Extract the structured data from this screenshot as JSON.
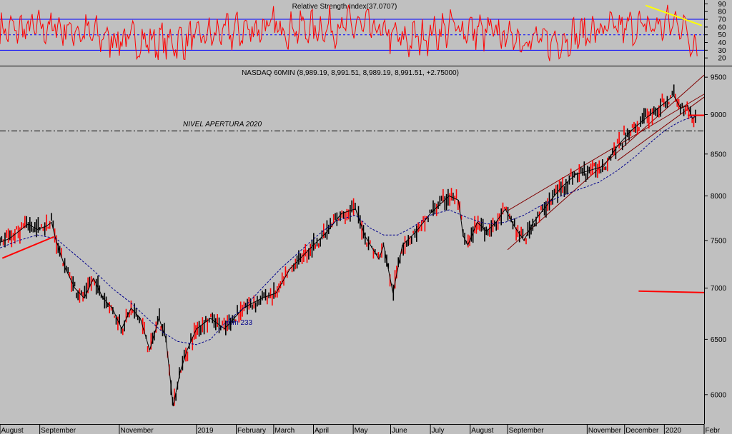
{
  "chart_data": [
    {
      "type": "line",
      "title": "Relative Strength Index(37.0707)",
      "ylim": [
        10,
        95
      ],
      "y_ticks": [
        90,
        80,
        70,
        60,
        50,
        40,
        30,
        20
      ],
      "levels": {
        "upper": 70,
        "mid": 50,
        "lower": 30
      },
      "series": [
        {
          "color": "#ff0000",
          "anchors": [
            [
              2018.58,
              55
            ],
            [
              2018.7,
              60
            ],
            [
              2018.82,
              45
            ],
            [
              2018.95,
              40
            ],
            [
              2019.05,
              52
            ],
            [
              2019.15,
              60
            ],
            [
              2019.25,
              58
            ],
            [
              2019.35,
              62
            ],
            [
              2019.45,
              42
            ],
            [
              2019.55,
              60
            ],
            [
              2019.65,
              50
            ],
            [
              2019.75,
              40
            ],
            [
              2019.85,
              55
            ],
            [
              2019.95,
              60
            ],
            [
              2020.0,
              62
            ],
            [
              2020.03,
              68
            ],
            [
              2020.07,
              35
            ]
          ]
        }
      ],
      "annotations": [
        {
          "type": "trendline",
          "color": "#ffff00",
          "points": [
            [
              2019.96,
              88
            ],
            [
              2020.08,
              62
            ]
          ]
        }
      ]
    },
    {
      "type": "line",
      "title": "NASDAQ 60MIN (8,989.19, 8,991.51, 8,989.19, 8,991.51, +2.75000)",
      "ylim": [
        5750,
        9650
      ],
      "y_ticks": [
        9500,
        9000,
        8500,
        8000,
        7500,
        7000,
        6500,
        6000
      ],
      "x_ticks": [
        {
          "label": "August",
          "x": 2018.58
        },
        {
          "label": "September",
          "x": 2018.665
        },
        {
          "label": "November",
          "x": 2018.835
        },
        {
          "label": "2019",
          "x": 2019.0
        },
        {
          "label": "February",
          "x": 2019.085
        },
        {
          "label": "March",
          "x": 2019.165
        },
        {
          "label": "April",
          "x": 2019.25
        },
        {
          "label": "May",
          "x": 2019.335
        },
        {
          "label": "June",
          "x": 2019.415
        },
        {
          "label": "July",
          "x": 2019.5
        },
        {
          "label": "August",
          "x": 2019.585
        },
        {
          "label": "September",
          "x": 2019.665
        },
        {
          "label": "November",
          "x": 2019.835
        },
        {
          "label": "December",
          "x": 2019.915
        },
        {
          "label": "2020",
          "x": 2020.0
        },
        {
          "label": "Febr",
          "x": 2020.085
        }
      ],
      "series": [
        {
          "kind": "price",
          "color": "#000000",
          "x": [
            2018.58,
            2018.6,
            2018.62,
            2018.64,
            2018.66,
            2018.68,
            2018.69,
            2018.7,
            2018.72,
            2018.74,
            2018.76,
            2018.78,
            2018.8,
            2018.82,
            2018.84,
            2018.86,
            2018.88,
            2018.9,
            2018.92,
            2018.935,
            2018.95,
            2018.965,
            2018.98,
            2019.0,
            2019.03,
            2019.06,
            2019.1,
            2019.14,
            2019.17,
            2019.2,
            2019.24,
            2019.28,
            2019.31,
            2019.34,
            2019.36,
            2019.39,
            2019.4,
            2019.42,
            2019.44,
            2019.47,
            2019.5,
            2019.54,
            2019.56,
            2019.57,
            2019.58,
            2019.6,
            2019.62,
            2019.64,
            2019.66,
            2019.68,
            2019.7,
            2019.72,
            2019.75,
            2019.78,
            2019.81,
            2019.84,
            2019.87,
            2019.9,
            2019.93,
            2019.96,
            2019.99,
            2020.02,
            2020.035,
            2020.05,
            2020.06,
            2020.07
          ],
          "y": [
            7480,
            7520,
            7600,
            7680,
            7620,
            7660,
            7700,
            7500,
            7200,
            7000,
            6900,
            7100,
            6900,
            6800,
            6600,
            6800,
            6700,
            6400,
            6700,
            6500,
            5900,
            6200,
            6400,
            6600,
            6700,
            6600,
            6800,
            6900,
            6950,
            7200,
            7400,
            7600,
            7800,
            7850,
            7550,
            7300,
            7450,
            6950,
            7450,
            7600,
            7800,
            8000,
            7950,
            7550,
            7450,
            7700,
            7600,
            7700,
            7850,
            7650,
            7500,
            7700,
            7900,
            8100,
            8250,
            8300,
            8350,
            8600,
            8800,
            8950,
            9100,
            9250,
            9080,
            9120,
            8950,
            8991.51
          ]
        },
        {
          "kind": "moving-average",
          "name": "mm 233",
          "color": "#00008b",
          "x": [
            2018.58,
            2018.62,
            2018.66,
            2018.7,
            2018.74,
            2018.78,
            2018.82,
            2018.86,
            2018.9,
            2018.93,
            2018.96,
            2019.0,
            2019.03,
            2019.06,
            2019.1,
            2019.14,
            2019.18,
            2019.22,
            2019.26,
            2019.3,
            2019.34,
            2019.37,
            2019.4,
            2019.43,
            2019.46,
            2019.5,
            2019.54,
            2019.58,
            2019.62,
            2019.66,
            2019.7,
            2019.74,
            2019.78,
            2019.82,
            2019.86,
            2019.9,
            2019.94,
            2019.97,
            2020.0,
            2020.03,
            2020.05,
            2020.07
          ],
          "y": [
            7420,
            7500,
            7560,
            7520,
            7350,
            7180,
            7000,
            6850,
            6680,
            6560,
            6480,
            6450,
            6500,
            6650,
            6800,
            7000,
            7200,
            7380,
            7560,
            7720,
            7780,
            7640,
            7560,
            7560,
            7640,
            7780,
            7840,
            7750,
            7680,
            7700,
            7780,
            7900,
            8000,
            8080,
            8160,
            8300,
            8480,
            8640,
            8790,
            8900,
            8950,
            8991
          ]
        }
      ],
      "annotations": [
        {
          "type": "text",
          "text": "NIVEL APERTURA 2020"
        },
        {
          "type": "text",
          "text": "mm 233"
        },
        {
          "type": "hline-dashdot",
          "color": "#000000",
          "y": 8790
        },
        {
          "type": "trendline",
          "color": "#ff0000",
          "points": [
            [
              2018.585,
              7310
            ],
            [
              2018.695,
              7540
            ]
          ]
        },
        {
          "type": "trendline",
          "color": "#ff0000",
          "points": [
            [
              2020.05,
              8990
            ],
            [
              2020.085,
              8990
            ]
          ]
        },
        {
          "type": "trendline",
          "color": "#ff0000",
          "points": [
            [
              2019.945,
              6970
            ],
            [
              2020.085,
              6955
            ]
          ]
        },
        {
          "type": "channel-line",
          "color": "#800000",
          "points": [
            [
              2019.665,
              7400
            ],
            [
              2020.085,
              9530
            ]
          ]
        },
        {
          "type": "channel-line",
          "color": "#800000",
          "points": [
            [
              2019.665,
              7830
            ],
            [
              2020.085,
              9270
            ]
          ]
        },
        {
          "type": "channel-line",
          "color": "#800000",
          "points": [
            [
              2019.9,
              8420
            ],
            [
              2020.085,
              9230
            ]
          ]
        }
      ]
    }
  ]
}
